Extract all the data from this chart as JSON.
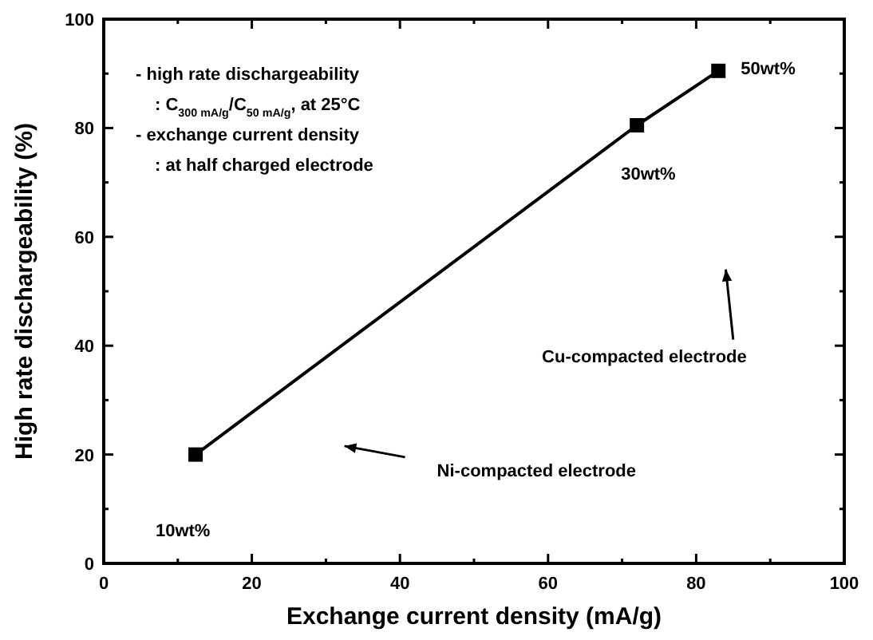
{
  "chart_data": {
    "type": "line",
    "xlabel": "Exchange current density (mA/g)",
    "ylabel": "High rate dischargeability (%)",
    "x": [
      12.4,
      72,
      83
    ],
    "series": [
      {
        "color": "#000000",
        "values": [
          20,
          80.5,
          90.5
        ]
      }
    ],
    "xlim": [
      0,
      100
    ],
    "ylim": [
      0,
      100
    ],
    "xticks": [
      0,
      {
        "value": 10,
        "label": null
      },
      20,
      {
        "value": 30,
        "label": null
      },
      40,
      {
        "value": 50,
        "label": null
      },
      60,
      {
        "value": 70,
        "label": null
      },
      80,
      {
        "value": 90,
        "label": null
      },
      100
    ],
    "yticks": [
      0,
      {
        "value": 10,
        "label": null
      },
      20,
      {
        "value": 30,
        "label": null
      },
      40,
      {
        "value": 50,
        "label": null
      },
      60,
      {
        "value": 70,
        "label": null
      },
      80,
      {
        "value": 90,
        "label": null
      },
      100
    ],
    "grid": false,
    "marker": "square",
    "line_style": "solid",
    "annotations": [
      "- high rate dischargeability",
      ": C$_{300 mA/g}$/C$_{50 mA/g}$, at 25°C",
      "- exchange current density",
      ":  at half charged electrode",
      "10wt%",
      "Cu-compacted electrode",
      "Ni-compacted electrode",
      {
        "text": "50wt%",
        "x": 83,
        "y": 90.5
      },
      {
        "text": "30wt%",
        "x": 72,
        "y": 80.5
      }
    ]
  }
}
